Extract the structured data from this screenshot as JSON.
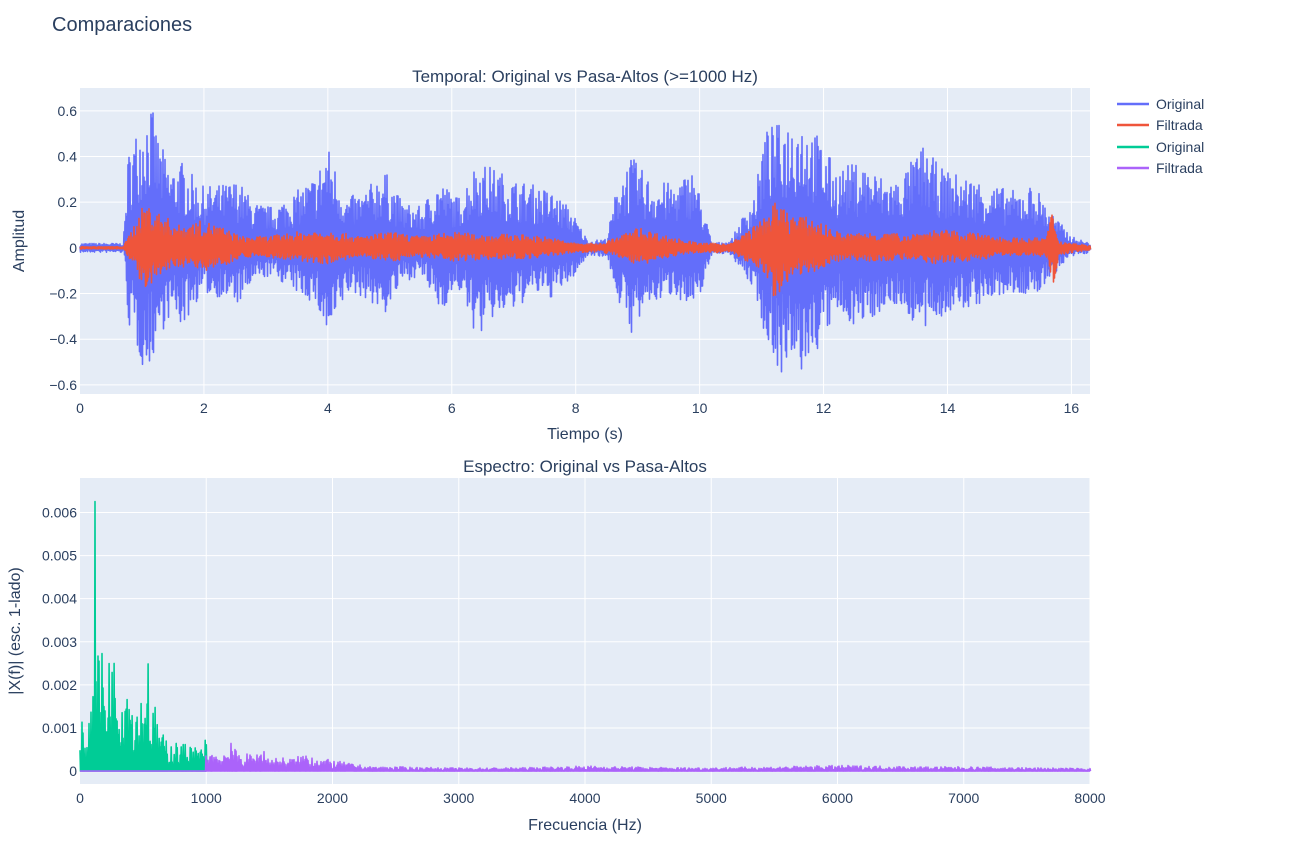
{
  "figure": {
    "title": "Comparaciones"
  },
  "colors": {
    "plot_bg": "#E5ECF6",
    "grid": "#ffffff",
    "text": "#2a3f5f",
    "original_time": "#636EFA",
    "filtered_time": "#EF553B",
    "original_spec": "#00CC96",
    "filtered_spec": "#AB63FA"
  },
  "legend": {
    "placement": "top-right, outside plot",
    "entries": [
      {
        "label": "Original",
        "color": "#636EFA"
      },
      {
        "label": "Filtrada",
        "color": "#EF553B"
      },
      {
        "label": "Original",
        "color": "#00CC96"
      },
      {
        "label": "Filtrada",
        "color": "#AB63FA"
      }
    ]
  },
  "chart_data": [
    {
      "type": "line",
      "title": "Temporal: Original vs Pasa-Altos (>=1000 Hz)",
      "xlabel": "Tiempo (s)",
      "ylabel": "Amplitud",
      "xlim": [
        0,
        16.3
      ],
      "ylim": [
        -0.64,
        0.7
      ],
      "grid": true,
      "xticks": [
        0,
        2,
        4,
        6,
        8,
        10,
        12,
        14,
        16
      ],
      "xtick_labels": [
        "0",
        "2",
        "4",
        "6",
        "8",
        "10",
        "12",
        "14",
        "16"
      ],
      "yticks": [
        -0.6,
        -0.4,
        -0.2,
        0,
        0.2,
        0.4,
        0.6
      ],
      "ytick_labels": [
        "−0.6",
        "−0.4",
        "−0.2",
        "0",
        "0.2",
        "0.4",
        "0.6"
      ],
      "series": [
        {
          "name": "Original",
          "color": "#636EFA",
          "envelope": {
            "t": [
              0,
              0.7,
              0.78,
              0.95,
              1.05,
              1.15,
              1.25,
              1.45,
              1.65,
              1.95,
              2.3,
              2.55,
              2.8,
              3.1,
              3.5,
              3.8,
              4.0,
              4.3,
              4.6,
              4.9,
              5.2,
              5.5,
              5.8,
              6.1,
              6.4,
              6.7,
              7.0,
              7.3,
              7.6,
              7.9,
              8.2,
              8.5,
              8.7,
              8.9,
              9.2,
              9.6,
              9.9,
              10.2,
              10.5,
              10.9,
              11.05,
              11.3,
              11.6,
              11.9,
              12.2,
              12.6,
              12.9,
              13.2,
              13.6,
              13.9,
              14.2,
              14.5,
              14.8,
              15.1,
              15.4,
              15.7,
              16.0,
              16.3
            ],
            "max": [
              0.02,
              0.02,
              0.42,
              0.55,
              0.6,
              0.63,
              0.5,
              0.35,
              0.38,
              0.27,
              0.28,
              0.3,
              0.2,
              0.18,
              0.25,
              0.32,
              0.45,
              0.22,
              0.25,
              0.35,
              0.2,
              0.18,
              0.3,
              0.22,
              0.38,
              0.35,
              0.3,
              0.28,
              0.25,
              0.18,
              0.03,
              0.04,
              0.32,
              0.4,
              0.3,
              0.28,
              0.35,
              0.02,
              0.03,
              0.25,
              0.52,
              0.55,
              0.6,
              0.5,
              0.35,
              0.38,
              0.32,
              0.3,
              0.45,
              0.35,
              0.32,
              0.3,
              0.27,
              0.25,
              0.28,
              0.15,
              0.05,
              0.02
            ],
            "min": [
              -0.02,
              -0.02,
              -0.35,
              -0.48,
              -0.56,
              -0.5,
              -0.4,
              -0.3,
              -0.35,
              -0.2,
              -0.22,
              -0.25,
              -0.15,
              -0.12,
              -0.2,
              -0.25,
              -0.42,
              -0.2,
              -0.22,
              -0.3,
              -0.15,
              -0.12,
              -0.28,
              -0.18,
              -0.4,
              -0.3,
              -0.28,
              -0.2,
              -0.22,
              -0.15,
              -0.03,
              -0.04,
              -0.25,
              -0.38,
              -0.25,
              -0.2,
              -0.3,
              -0.02,
              -0.03,
              -0.2,
              -0.4,
              -0.55,
              -0.57,
              -0.45,
              -0.3,
              -0.35,
              -0.28,
              -0.25,
              -0.38,
              -0.3,
              -0.28,
              -0.25,
              -0.22,
              -0.2,
              -0.22,
              -0.12,
              -0.04,
              -0.02
            ]
          }
        },
        {
          "name": "Filtrada",
          "color": "#EF553B",
          "envelope": {
            "t": [
              0,
              0.7,
              0.9,
              1.05,
              1.3,
              1.6,
              2.0,
              2.3,
              2.6,
              3.0,
              3.5,
              4.0,
              4.5,
              5.0,
              5.5,
              6.0,
              6.5,
              7.0,
              7.5,
              8.0,
              8.4,
              8.7,
              9.0,
              9.5,
              10.0,
              10.5,
              11.0,
              11.2,
              11.5,
              11.9,
              12.3,
              12.8,
              13.3,
              13.8,
              14.3,
              14.8,
              15.3,
              15.6,
              15.7,
              15.8,
              16.3
            ],
            "max": [
              0.005,
              0.005,
              0.12,
              0.2,
              0.15,
              0.1,
              0.12,
              0.09,
              0.05,
              0.05,
              0.07,
              0.08,
              0.05,
              0.07,
              0.05,
              0.07,
              0.06,
              0.06,
              0.05,
              0.02,
              0.02,
              0.05,
              0.09,
              0.05,
              0.02,
              0.02,
              0.12,
              0.2,
              0.15,
              0.12,
              0.06,
              0.07,
              0.06,
              0.08,
              0.07,
              0.05,
              0.04,
              0.05,
              0.18,
              0.03,
              0.01
            ],
            "min": [
              -0.005,
              -0.005,
              -0.1,
              -0.22,
              -0.12,
              -0.08,
              -0.1,
              -0.08,
              -0.04,
              -0.04,
              -0.06,
              -0.07,
              -0.04,
              -0.06,
              -0.04,
              -0.06,
              -0.05,
              -0.05,
              -0.04,
              -0.02,
              -0.02,
              -0.04,
              -0.08,
              -0.04,
              -0.02,
              -0.02,
              -0.1,
              -0.22,
              -0.12,
              -0.1,
              -0.05,
              -0.06,
              -0.05,
              -0.07,
              -0.06,
              -0.04,
              -0.03,
              -0.04,
              -0.16,
              -0.03,
              -0.01
            ]
          }
        }
      ]
    },
    {
      "type": "line",
      "title": "Espectro: Original vs Pasa-Altos",
      "xlabel": "Frecuencia (Hz)",
      "ylabel": "|X(f)| (esc. 1-lado)",
      "xlim": [
        0,
        8000
      ],
      "ylim": [
        -0.0003,
        0.0068
      ],
      "grid": true,
      "xticks": [
        0,
        1000,
        2000,
        3000,
        4000,
        5000,
        6000,
        7000,
        8000
      ],
      "xtick_labels": [
        "0",
        "1000",
        "2000",
        "3000",
        "4000",
        "5000",
        "6000",
        "7000",
        "8000"
      ],
      "yticks": [
        0,
        0.001,
        0.002,
        0.003,
        0.004,
        0.005,
        0.006
      ],
      "ytick_labels": [
        "0",
        "0.001",
        "0.002",
        "0.003",
        "0.004",
        "0.005",
        "0.006"
      ],
      "series": [
        {
          "name": "Original",
          "color": "#00CC96",
          "envelope": {
            "f": [
              0,
              20,
              40,
              60,
              80,
              100,
              120,
              130,
              140,
              160,
              180,
              200,
              240,
              280,
              300,
              340,
              380,
              400,
              420,
              460,
              500,
              540,
              560,
              600,
              640,
              680,
              720,
              760,
              800,
              850,
              900,
              950,
              1000
            ],
            "max": [
              0.0005,
              0.0013,
              0.0008,
              0.001,
              0.0015,
              0.0035,
              0.0064,
              0.0047,
              0.004,
              0.0025,
              0.003,
              0.0022,
              0.0032,
              0.0025,
              0.003,
              0.0022,
              0.0028,
              0.0018,
              0.0022,
              0.0015,
              0.002,
              0.0031,
              0.0012,
              0.0016,
              0.0009,
              0.0008,
              0.0007,
              0.0007,
              0.0006,
              0.0007,
              0.0006,
              0.0005,
              0.0008
            ]
          }
        },
        {
          "name": "Filtrada",
          "color": "#AB63FA",
          "envelope": {
            "f": [
              0,
              995,
              1000,
              1050,
              1100,
              1150,
              1190,
              1200,
              1210,
              1250,
              1300,
              1400,
              1450,
              1500,
              1600,
              1700,
              1800,
              1900,
              2000,
              2100,
              2200,
              2300,
              2500,
              2800,
              3000,
              3500,
              3800,
              4000,
              4300,
              4700,
              5000,
              5500,
              5800,
              6000,
              6300,
              6700,
              7000,
              7500,
              8000
            ],
            "max": [
              0,
              0,
              0.0006,
              0.0005,
              0.0004,
              0.0005,
              0.0006,
              0.00128,
              0.0006,
              0.0004,
              0.0004,
              0.0004,
              0.0006,
              0.0003,
              0.00032,
              0.0003,
              0.00045,
              0.0003,
              0.00025,
              0.0002,
              0.00015,
              0.0001,
              0.0001,
              8e-05,
              7e-05,
              8e-05,
              0.0001,
              0.00012,
              0.0001,
              8e-05,
              8e-05,
              0.0001,
              0.00012,
              0.00013,
              0.00012,
              0.0001,
              0.0001,
              8e-05,
              6e-05
            ]
          }
        }
      ]
    }
  ]
}
